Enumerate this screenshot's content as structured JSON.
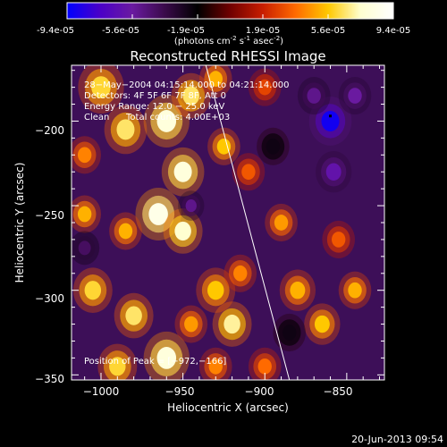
{
  "colorbar": {
    "ticks": [
      "-9.4e-05",
      "-5.6e-05",
      "-1.9e-05",
      "1.9e-05",
      "5.6e-05",
      "9.4e-05"
    ],
    "unit_main": "(photons cm",
    "unit_exp1": "-2",
    "unit_mid": " s",
    "unit_exp2": "-1",
    "unit_end": " asec",
    "unit_exp3": "-2",
    "unit_close": ")",
    "colormap": [
      "#0000ff",
      "#4a00c8",
      "#6a1aa0",
      "#3a0a4a",
      "#000000",
      "#700000",
      "#c81e00",
      "#ff6a00",
      "#ffc800",
      "#ffffd0",
      "#ffffff"
    ]
  },
  "footer": {
    "date": "20-Jun-2013 09:54"
  },
  "chart_data": {
    "type": "heatmap",
    "title": "Reconstructed RHESSI Image",
    "xlabel": "Heliocentric X (arcsec)",
    "ylabel": "Heliocentric Y (arcsec)",
    "xlim": [
      -1018,
      -827
    ],
    "ylim": [
      -353,
      -167
    ],
    "xticks": [
      -1000,
      -950,
      -900,
      -850
    ],
    "yticks": [
      -200,
      -250,
      -300,
      -350
    ],
    "xtick_labels": [
      "−1000",
      "−950",
      "−900",
      "−850"
    ],
    "ytick_labels": [
      "−200",
      "−250",
      "−300",
      "−350"
    ],
    "value_range": [
      -9.4e-05,
      9.4e-05
    ],
    "limb_line": [
      [
        -936,
        -167
      ],
      [
        -885,
        -353
      ]
    ],
    "peak": [
      -972,
      -166
    ],
    "annotations": {
      "time": "28−May−2004 04:15:14.000 to 04:21:14.000",
      "detectors": "Detectors: 4F 5F 6F 7F 8F, Att 0",
      "energy": "Energy Range: 12.0 − 25.0 keV",
      "clean": "Clean",
      "counts": "Total counts: 4.00E+03",
      "peak": "Position of Peak = [−972,−166]"
    },
    "blobs": [
      {
        "x": -1000,
        "y": -180,
        "v": 0.65,
        "r": 14
      },
      {
        "x": -985,
        "y": -205,
        "v": 0.7,
        "r": 13
      },
      {
        "x": -960,
        "y": -200,
        "v": 0.85,
        "r": 14
      },
      {
        "x": -945,
        "y": -185,
        "v": 0.7,
        "r": 12
      },
      {
        "x": -930,
        "y": -175,
        "v": 0.55,
        "r": 10
      },
      {
        "x": -925,
        "y": -215,
        "v": 0.6,
        "r": 10
      },
      {
        "x": -950,
        "y": -230,
        "v": 0.85,
        "r": 13
      },
      {
        "x": -965,
        "y": -255,
        "v": 0.9,
        "r": 14
      },
      {
        "x": -950,
        "y": -265,
        "v": 0.8,
        "r": 12
      },
      {
        "x": -1010,
        "y": -255,
        "v": 0.55,
        "r": 10
      },
      {
        "x": -985,
        "y": -265,
        "v": 0.55,
        "r": 10
      },
      {
        "x": -1005,
        "y": -300,
        "v": 0.65,
        "r": 12
      },
      {
        "x": -980,
        "y": -315,
        "v": 0.7,
        "r": 12
      },
      {
        "x": -960,
        "y": -340,
        "v": 0.85,
        "r": 14
      },
      {
        "x": -990,
        "y": -345,
        "v": 0.65,
        "r": 12
      },
      {
        "x": -930,
        "y": -300,
        "v": 0.6,
        "r": 12
      },
      {
        "x": -920,
        "y": -320,
        "v": 0.75,
        "r": 12
      },
      {
        "x": -915,
        "y": -290,
        "v": 0.45,
        "r": 10
      },
      {
        "x": -945,
        "y": -320,
        "v": 0.5,
        "r": 10
      },
      {
        "x": -890,
        "y": -260,
        "v": 0.5,
        "r": 10
      },
      {
        "x": -880,
        "y": -300,
        "v": 0.55,
        "r": 11
      },
      {
        "x": -865,
        "y": -320,
        "v": 0.6,
        "r": 11
      },
      {
        "x": -845,
        "y": -300,
        "v": 0.55,
        "r": 10
      },
      {
        "x": -855,
        "y": -270,
        "v": 0.35,
        "r": 10
      },
      {
        "x": -900,
        "y": -180,
        "v": 0.3,
        "r": 10
      },
      {
        "x": -910,
        "y": -230,
        "v": 0.35,
        "r": 10
      },
      {
        "x": -930,
        "y": -345,
        "v": 0.45,
        "r": 10
      },
      {
        "x": -900,
        "y": -345,
        "v": 0.4,
        "r": 10
      },
      {
        "x": -1010,
        "y": -220,
        "v": 0.45,
        "r": 10
      },
      {
        "x": -860,
        "y": -200,
        "v": -0.95,
        "r": 13
      },
      {
        "x": -845,
        "y": -185,
        "v": -0.6,
        "r": 10
      },
      {
        "x": -858,
        "y": -230,
        "v": -0.65,
        "r": 11
      },
      {
        "x": -870,
        "y": -185,
        "v": -0.55,
        "r": 10
      },
      {
        "x": -945,
        "y": -250,
        "v": -0.55,
        "r": 8
      },
      {
        "x": -1010,
        "y": -275,
        "v": -0.45,
        "r": 9
      },
      {
        "x": -895,
        "y": -215,
        "v": -0.25,
        "r": 10
      },
      {
        "x": -885,
        "y": -325,
        "v": -0.25,
        "r": 10
      }
    ]
  }
}
